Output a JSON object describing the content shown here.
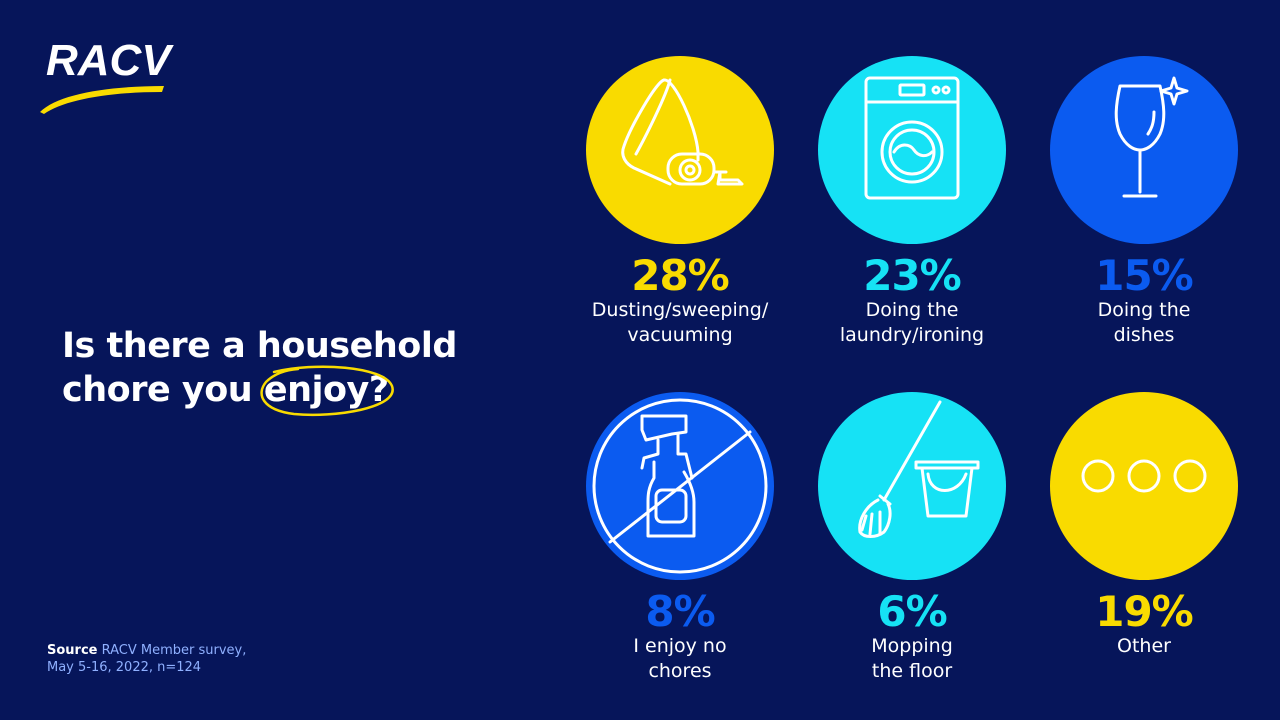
{
  "brand": {
    "name": "RACV"
  },
  "question": {
    "line1": "Is there a household",
    "line2_prefix": "chore you ",
    "highlight": "enjoy",
    "suffix": "?"
  },
  "source": {
    "label": "Source",
    "text_line1": "RACV Member survey,",
    "text_line2": "May 5-16, 2022, n=124"
  },
  "colors": {
    "background": "#06155a",
    "yellow": "#f9db00",
    "cyan": "#16e2f5",
    "blue": "#0b5bf0"
  },
  "items": [
    {
      "percent": "28%",
      "label_line1": "Dusting/sweeping/",
      "label_line2": "vacuuming",
      "icon": "vacuum-icon",
      "circle_color": "#f9db00",
      "percent_color": "#f9db00"
    },
    {
      "percent": "23%",
      "label_line1": "Doing the",
      "label_line2": "laundry/ironing",
      "icon": "washing-machine-icon",
      "circle_color": "#16e2f5",
      "percent_color": "#16e2f5"
    },
    {
      "percent": "15%",
      "label_line1": "Doing the",
      "label_line2": "dishes",
      "icon": "wine-glass-icon",
      "circle_color": "#0b5bf0",
      "percent_color": "#0b5bf0"
    },
    {
      "percent": "8%",
      "label_line1": "I enjoy no",
      "label_line2": "chores",
      "icon": "no-spray-bottle-icon",
      "circle_color": "#0b5bf0",
      "percent_color": "#0b5bf0"
    },
    {
      "percent": "6%",
      "label_line1": "Mopping",
      "label_line2": "the floor",
      "icon": "mop-bucket-icon",
      "circle_color": "#16e2f5",
      "percent_color": "#16e2f5"
    },
    {
      "percent": "19%",
      "label_line1": "Other",
      "label_line2": "",
      "icon": "three-dots-icon",
      "circle_color": "#f9db00",
      "percent_color": "#f9db00"
    }
  ]
}
